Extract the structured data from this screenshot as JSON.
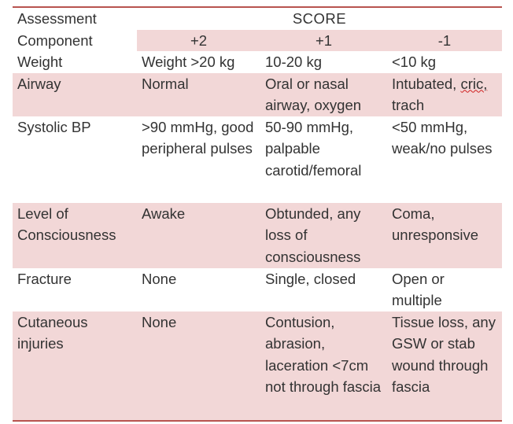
{
  "header": {
    "component_line1": "Assessment",
    "component_line2": "Component",
    "score_label": "SCORE",
    "points": [
      "+2",
      "+1",
      "-1"
    ]
  },
  "rows": [
    {
      "component": "Weight",
      "plus2": "Weight >20 kg",
      "plus1": "10-20 kg",
      "minus1": "<10 kg"
    },
    {
      "component": "Airway",
      "plus2": "Normal",
      "plus1": "Oral or nasal airway, oxygen",
      "minus1_part1": "Intubated, ",
      "minus1_part2": "cric,",
      "minus1_part3": " trach"
    },
    {
      "component": "Systolic BP",
      "plus2": ">90 mmHg, good peripheral pulses",
      "plus1": "50-90 mmHg, palpable carotid/femoral",
      "minus1": "<50 mmHg, weak/no pulses"
    },
    {
      "component": "Level of Consciousness",
      "plus2": "Awake",
      "plus1": "Obtunded, any loss of consciousness",
      "minus1": "Coma, unresponsive"
    },
    {
      "component": "Fracture",
      "plus2": "None",
      "plus1": "Single, closed",
      "minus1": "Open or multiple"
    },
    {
      "component": "Cutaneous injuries",
      "plus2": "None",
      "plus1": "Contusion, abrasion, laceration <7cm not through fascia",
      "minus1": "Tissue loss, any GSW or stab wound through fascia"
    }
  ],
  "colors": {
    "shade": "#f2d7d7",
    "rule": "#b85450",
    "text": "#333333"
  }
}
